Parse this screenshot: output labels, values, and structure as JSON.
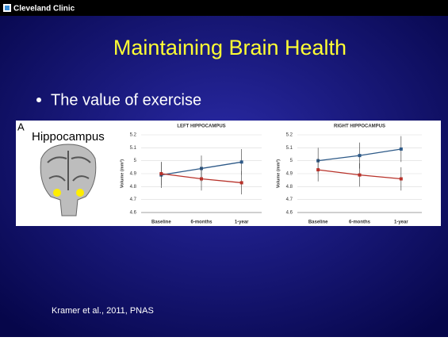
{
  "header": {
    "logo": "Cleveland Clinic"
  },
  "title": "Maintaining Brain Health",
  "bullets": [
    "The value of exercise"
  ],
  "figure": {
    "panel": "A",
    "label": "Hippocampus"
  },
  "citation": "Kramer et al., 2011, PNAS",
  "chart_data": [
    {
      "type": "line",
      "title": "LEFT HIPPOCAMPUS",
      "y_label": "Volume (mm³)",
      "categories": [
        "Baseline",
        "6-months",
        "1-year"
      ],
      "series": [
        {
          "color": "#2e5a88",
          "values": [
            4.89,
            4.94,
            4.99
          ],
          "errors": [
            0.1,
            0.1,
            0.1
          ]
        },
        {
          "color": "#b8322a",
          "values": [
            4.9,
            4.86,
            4.83
          ],
          "errors": [
            0.09,
            0.09,
            0.09
          ]
        }
      ],
      "ylim": [
        4.6,
        5.2
      ],
      "yticks": [
        4.6,
        4.7,
        4.8,
        4.9,
        5,
        5.1,
        5.2
      ],
      "grid": true
    },
    {
      "type": "line",
      "title": "RIGHT HIPPOCAMPUS",
      "y_label": "Volume (mm³)",
      "categories": [
        "Baseline",
        "6-months",
        "1-year"
      ],
      "series": [
        {
          "color": "#2e5a88",
          "values": [
            5.0,
            5.04,
            5.09
          ],
          "errors": [
            0.1,
            0.1,
            0.1
          ]
        },
        {
          "color": "#b8322a",
          "values": [
            4.93,
            4.89,
            4.86
          ],
          "errors": [
            0.09,
            0.09,
            0.09
          ]
        }
      ],
      "ylim": [
        4.6,
        5.2
      ],
      "yticks": [
        4.6,
        4.7,
        4.8,
        4.9,
        5,
        5.1,
        5.2
      ],
      "grid": true
    }
  ]
}
